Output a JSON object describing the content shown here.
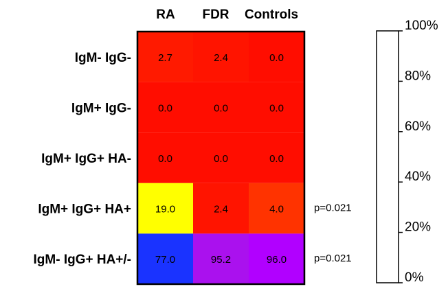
{
  "chart_data": {
    "type": "heatmap",
    "title": "",
    "columns": [
      "RA",
      "FDR",
      "Controls"
    ],
    "rows": [
      "IgM- IgG-",
      "IgM+ IgG-",
      "IgM+ IgG+ HA-",
      "IgM+ IgG+ HA+",
      "IgM- IgG+ HA+/-"
    ],
    "values": [
      [
        2.7,
        2.4,
        0.0
      ],
      [
        0.0,
        0.0,
        0.0
      ],
      [
        0.0,
        0.0,
        0.0
      ],
      [
        19.0,
        2.4,
        4.0
      ],
      [
        77.0,
        95.2,
        96.0
      ]
    ],
    "value_labels": [
      [
        "2.7",
        "2.4",
        "0.0"
      ],
      [
        "0.0",
        "0.0",
        "0.0"
      ],
      [
        "0.0",
        "0.0",
        "0.0"
      ],
      [
        "19.0",
        "2.4",
        "4.0"
      ],
      [
        "77.0",
        "95.2",
        "96.0"
      ]
    ],
    "cell_colors": [
      [
        "#ff1a00",
        "#ff1400",
        "#ff0d00"
      ],
      [
        "#ff0d00",
        "#ff0d00",
        "#ff0d00"
      ],
      [
        "#ff0d00",
        "#ff0d00",
        "#ff0d00"
      ],
      [
        "#ffff00",
        "#ff1400",
        "#ff3300"
      ],
      [
        "#1a33ff",
        "#aa11ee",
        "#b100ff"
      ]
    ],
    "row_annotations": [
      "",
      "",
      "",
      "p=0.021",
      "p=0.021"
    ],
    "colorbar": {
      "range": [
        0,
        100
      ],
      "ticks": [
        0,
        20,
        40,
        60,
        80,
        100
      ],
      "tick_labels": [
        "0%",
        "20%",
        "40%",
        "60%",
        "80%",
        "100%"
      ],
      "fill": "#ffffff"
    },
    "grid": false,
    "legend": "colorbar-right"
  }
}
